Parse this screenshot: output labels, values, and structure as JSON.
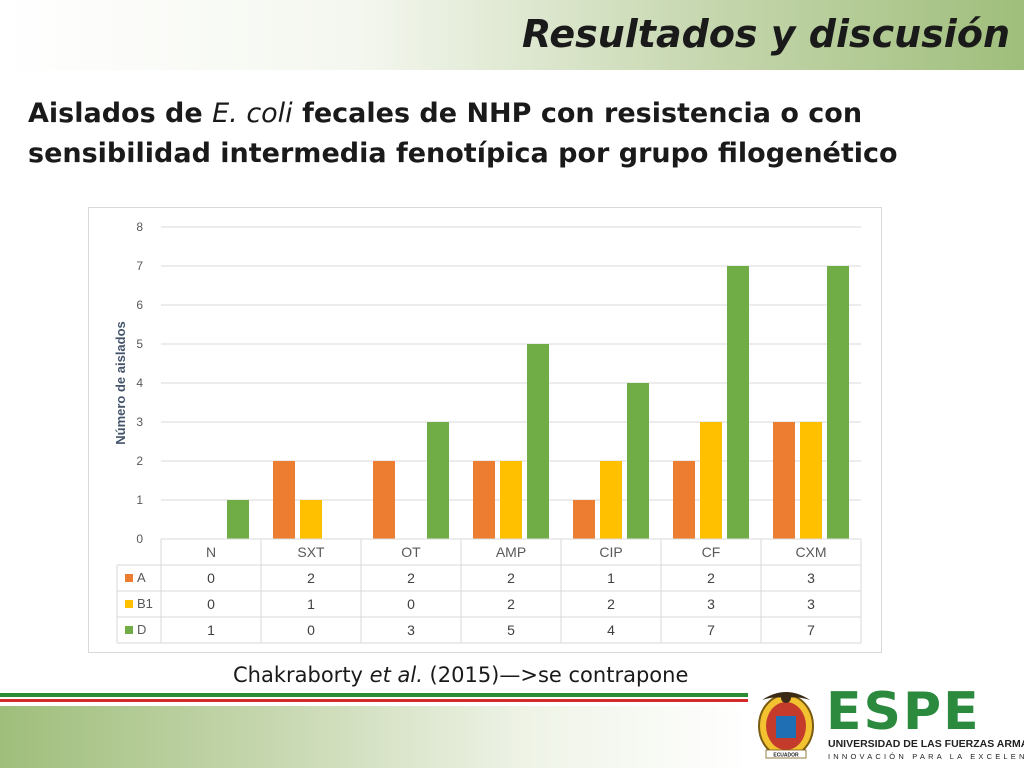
{
  "slide": {
    "title": "Resultados y discusión",
    "subtitle_prefix": "Aislados de ",
    "subtitle_italic": "E. coli",
    "subtitle_rest": " fecales de NHP con resistencia o con sensibilidad intermedia fenotípica por grupo filogenético",
    "caption_author": "Chakraborty ",
    "caption_etal": "et al.",
    "caption_rest": " (2015)—>se contrapone"
  },
  "logo": {
    "word": "ESPE",
    "university": "UNIVERSIDAD DE LAS FUERZAS ARMADAS",
    "motto": "INNOVACIÓN PARA LA EXCELENCIA",
    "country": "ECUADOR"
  },
  "colors": {
    "A": "#ed7d31",
    "B1": "#ffc000",
    "D": "#70ad47",
    "grid": "#d9d9d9",
    "axis_text": "#595959",
    "ylabel": "#44546a"
  },
  "chart_data": {
    "type": "bar",
    "categories": [
      "N",
      "SXT",
      "OT",
      "AMP",
      "CIP",
      "CF",
      "CXM"
    ],
    "series": [
      {
        "name": "A",
        "values": [
          0,
          2,
          2,
          2,
          1,
          2,
          3
        ]
      },
      {
        "name": "B1",
        "values": [
          0,
          1,
          0,
          2,
          2,
          3,
          3
        ]
      },
      {
        "name": "D",
        "values": [
          1,
          0,
          3,
          5,
          4,
          7,
          7
        ]
      }
    ],
    "ylabel": "Número de aislados",
    "xlabel": "",
    "ylim": [
      0,
      8
    ],
    "yticks": [
      0,
      1,
      2,
      3,
      4,
      5,
      6,
      7,
      8
    ],
    "grid": true,
    "data_table": true
  }
}
